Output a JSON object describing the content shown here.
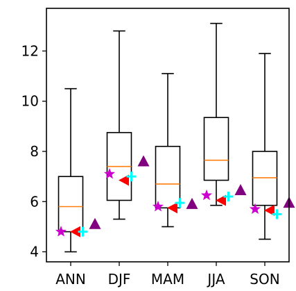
{
  "chart_data": {
    "type": "box",
    "title": "",
    "xlabel": "",
    "ylabel": "",
    "categories": [
      "ANN",
      "DJF",
      "MAM",
      "JJA",
      "SON"
    ],
    "ylim": [
      3.6,
      13.7
    ],
    "yticks": [
      4,
      6,
      8,
      10,
      12
    ],
    "grid": false,
    "legend": "none",
    "boxes": [
      {
        "category": "ANN",
        "whisker_low": 4.0,
        "q1": 4.8,
        "median": 5.8,
        "q3": 7.0,
        "whisker_high": 10.5
      },
      {
        "category": "DJF",
        "whisker_low": 5.3,
        "q1": 6.05,
        "median": 7.4,
        "q3": 8.75,
        "whisker_high": 12.8
      },
      {
        "category": "MAM",
        "whisker_low": 5.0,
        "q1": 5.75,
        "median": 6.7,
        "q3": 8.2,
        "whisker_high": 11.1
      },
      {
        "category": "JJA",
        "whisker_low": 5.85,
        "q1": 6.85,
        "median": 7.65,
        "q3": 9.35,
        "whisker_high": 13.1
      },
      {
        "category": "SON",
        "whisker_low": 4.5,
        "q1": 5.85,
        "median": 6.95,
        "q3": 8.0,
        "whisker_high": 11.9
      }
    ],
    "marker_series": [
      {
        "marker": "star",
        "color": "#cc00cc",
        "offset": -0.2,
        "values": [
          4.8,
          7.1,
          5.8,
          6.25,
          5.7
        ]
      },
      {
        "marker": "triangle-left",
        "color": "#ff0000",
        "offset": 0.1,
        "values": [
          4.8,
          6.85,
          5.75,
          6.05,
          5.65
        ]
      },
      {
        "marker": "plus",
        "color": "#00ffff",
        "offset": 0.25,
        "values": [
          4.8,
          7.0,
          5.95,
          6.2,
          5.5
        ]
      },
      {
        "marker": "triangle-up",
        "color": "#800080",
        "offset": 0.5,
        "values": [
          5.1,
          7.6,
          5.9,
          6.45,
          5.95
        ]
      }
    ],
    "colors": {
      "box": "#000000",
      "median": "#ff7f0e"
    }
  }
}
